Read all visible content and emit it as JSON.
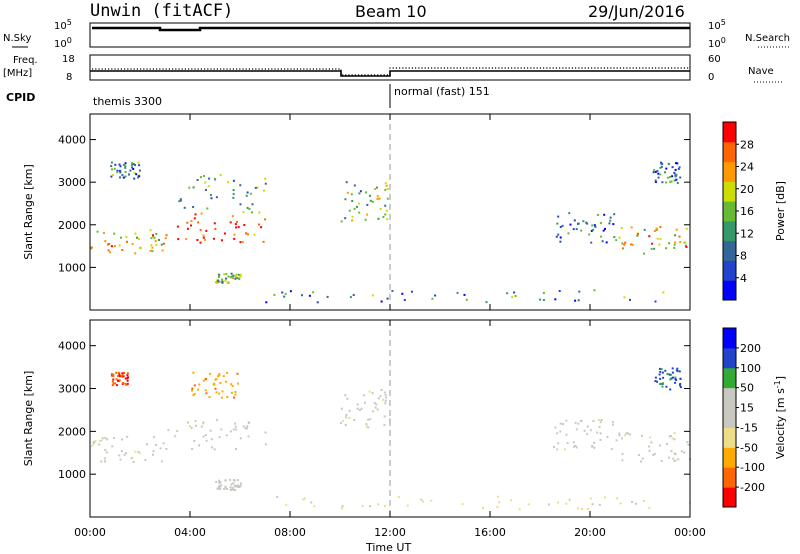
{
  "header": {
    "station": "Unwin (fitACF)",
    "beam": "Beam 10",
    "date": "29/Jun/2016"
  },
  "params": {
    "nsky_label": "N.Sky",
    "nsearch_label": "N.Search",
    "freq_label_line1": "Freq.",
    "freq_label_line2": "[MHz]",
    "nave_label": "Nave",
    "cpid_label": "CPID",
    "nsky_ticks": [
      "10^5",
      "10^0"
    ],
    "nsearch_ticks": [
      "10^5",
      "10^0"
    ],
    "freq_ticks": [
      "18",
      "8"
    ],
    "nave_ticks": [
      "60",
      "0"
    ],
    "cpid_segments": [
      {
        "label": "themis 3300",
        "start_hour": 0,
        "end_hour": 12
      },
      {
        "label": "normal (fast) 151",
        "start_hour": 12,
        "end_hour": 24
      }
    ]
  },
  "colors": {
    "power_scale": [
      "#0000ff",
      "#2244cc",
      "#336699",
      "#339966",
      "#66bb33",
      "#ccdd00",
      "#ff9900",
      "#ff6600",
      "#ff0000"
    ],
    "velocity_scale": [
      "#ff0000",
      "#ff6600",
      "#ffaa00",
      "#eedd88",
      "#c8c8c0",
      "#c8c8c0",
      "#33aa33",
      "#2244cc",
      "#0000ff"
    ]
  },
  "chart_data": [
    {
      "type": "heatmap",
      "panel": "power",
      "x_unit": "hour UT",
      "xlim": [
        0,
        24
      ],
      "ylim": [
        0,
        4600
      ],
      "ylabel": "Slant Range [km]",
      "yticks": [
        "1000",
        "2000",
        "3000",
        "4000"
      ],
      "xticks": [
        "00:00",
        "04:00",
        "08:00",
        "12:00",
        "16:00",
        "20:00",
        "00:00"
      ],
      "xlabel": "Time UT",
      "colorbar": {
        "label": "Power [dB]",
        "ticks": [
          "4",
          "8",
          "12",
          "16",
          "20",
          "24",
          "28"
        ],
        "range": [
          0,
          30
        ]
      },
      "scatter_regions": [
        {
          "t": [
            0.0,
            3.0
          ],
          "r": [
            1300,
            1900
          ],
          "level": 20
        },
        {
          "t": [
            3.0,
            7.0
          ],
          "r": [
            1600,
            2300
          ],
          "level": 26
        },
        {
          "t": [
            5.0,
            6.0
          ],
          "r": [
            650,
            900
          ],
          "level": 14
        },
        {
          "t": [
            0.8,
            2.0
          ],
          "r": [
            3100,
            3500
          ],
          "level": 10
        },
        {
          "t": [
            3.5,
            7.0
          ],
          "r": [
            2300,
            3200
          ],
          "level": 12
        },
        {
          "t": [
            10.0,
            12.0
          ],
          "r": [
            2100,
            3100
          ],
          "level": 14
        },
        {
          "t": [
            7.0,
            24.0
          ],
          "r": [
            200,
            500
          ],
          "level": 10
        },
        {
          "t": [
            18.5,
            21.0
          ],
          "r": [
            1600,
            2300
          ],
          "level": 8
        },
        {
          "t": [
            21.0,
            24.0
          ],
          "r": [
            1300,
            2000
          ],
          "level": 20
        },
        {
          "t": [
            22.5,
            23.6
          ],
          "r": [
            3000,
            3500
          ],
          "level": 8
        }
      ]
    },
    {
      "type": "heatmap",
      "panel": "velocity",
      "x_unit": "hour UT",
      "xlim": [
        0,
        24
      ],
      "ylim": [
        0,
        4600
      ],
      "ylabel": "Slant Range [km]",
      "yticks": [
        "1000",
        "2000",
        "3000",
        "4000"
      ],
      "xticks": [
        "00:00",
        "04:00",
        "08:00",
        "12:00",
        "16:00",
        "20:00",
        "00:00"
      ],
      "xlabel": "Time UT",
      "colorbar": {
        "label": "Velocity [m s^-1]",
        "ticks": [
          "-200",
          "-100",
          "-50",
          "-15",
          "15",
          "50",
          "100",
          "200"
        ],
        "range": [
          -250,
          250
        ]
      },
      "scatter_regions": [
        {
          "t": [
            0.0,
            3.0
          ],
          "r": [
            1300,
            1900
          ],
          "level": 0
        },
        {
          "t": [
            3.0,
            7.0
          ],
          "r": [
            1600,
            2300
          ],
          "level": 0
        },
        {
          "t": [
            5.0,
            6.0
          ],
          "r": [
            650,
            900
          ],
          "level": 40
        },
        {
          "t": [
            0.8,
            1.5
          ],
          "r": [
            3100,
            3400
          ],
          "level": -180
        },
        {
          "t": [
            4.0,
            6.0
          ],
          "r": [
            2800,
            3400
          ],
          "level": -120
        },
        {
          "t": [
            10.0,
            12.0
          ],
          "r": [
            2100,
            3000
          ],
          "level": 0
        },
        {
          "t": [
            7.0,
            24.0
          ],
          "r": [
            200,
            500
          ],
          "level": -40
        },
        {
          "t": [
            18.5,
            21.0
          ],
          "r": [
            1600,
            2300
          ],
          "level": 0
        },
        {
          "t": [
            21.0,
            24.0
          ],
          "r": [
            1300,
            2000
          ],
          "level": 0
        },
        {
          "t": [
            22.5,
            23.6
          ],
          "r": [
            3000,
            3500
          ],
          "level": 150
        }
      ]
    }
  ]
}
